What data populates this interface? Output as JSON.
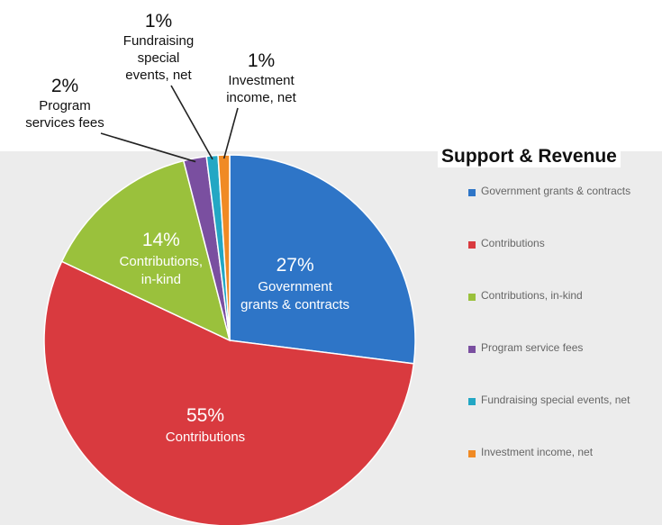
{
  "chart_data": {
    "type": "pie",
    "title": "Support & Revenue",
    "categories": [
      "Government grants & contracts",
      "Contributions",
      "Contributions, in-kind",
      "Program service fees",
      "Fundraising special events, net",
      "Investment income, net"
    ],
    "values": [
      27,
      55,
      14,
      2,
      1,
      1
    ],
    "percent_labels": [
      "27%",
      "55%",
      "14%",
      "2%",
      "1%",
      "1%"
    ],
    "slice_labels": [
      [
        "Government",
        "grants & contracts"
      ],
      [
        "Contributions"
      ],
      [
        "Contributions,",
        "in-kind"
      ],
      [
        "Program",
        "services fees"
      ],
      [
        "Fundraising",
        "special",
        "events, net"
      ],
      [
        "Investment",
        "income, net"
      ]
    ],
    "legend_labels": [
      "Government grants & contracts",
      "Contributions",
      "Contributions, in-kind",
      "Program service fees",
      "Fundraising special events, net",
      "Investment income, net"
    ],
    "colors": [
      "#2e75c7",
      "#d93a3f",
      "#9ac13c",
      "#7a4fa0",
      "#23a7c4",
      "#f08a24"
    ],
    "legend_position": "right"
  }
}
